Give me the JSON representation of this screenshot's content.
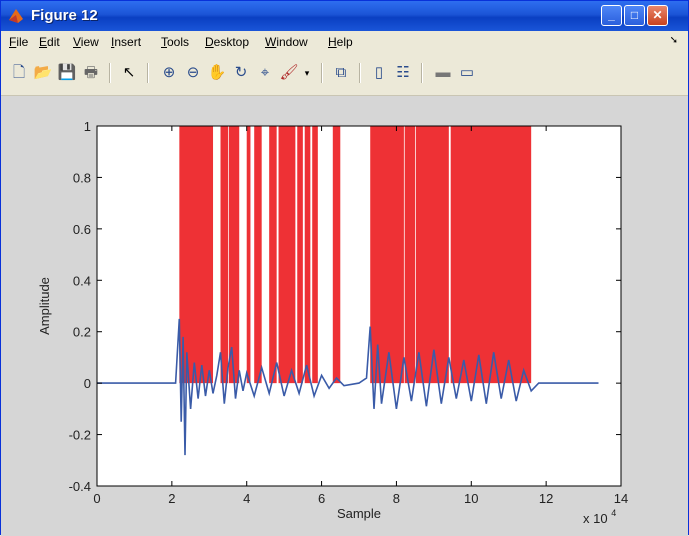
{
  "window": {
    "title": "Figure 12",
    "menu": [
      "File",
      "Edit",
      "View",
      "Insert",
      "Tools",
      "Desktop",
      "Window",
      "Help"
    ]
  },
  "toolbar": {
    "icons": [
      "new-figure-icon",
      "open-file-icon",
      "save-icon",
      "print-icon",
      "edit-plot-arrow-icon",
      "zoom-in-icon",
      "zoom-out-icon",
      "pan-hand-icon",
      "rotate-3d-icon",
      "data-cursor-icon",
      "brush-icon",
      "brush-dropdown-icon",
      "link-plot-icon",
      "colorbar-icon",
      "legend-icon",
      "hide-plot-tools-icon",
      "show-plot-tools-icon"
    ]
  },
  "colors": {
    "signal": "#3a5ba8",
    "mask": "#ee3135",
    "axes_bg": "#ffffff",
    "figure_bg": "#d6d6d6"
  },
  "chart_data": {
    "type": "line",
    "xlabel": "Sample",
    "ylabel": "Amplitude",
    "x_exponent": "x 10",
    "x_exponent_power": "4",
    "xlim": [
      0,
      140000
    ],
    "ylim": [
      -0.4,
      1
    ],
    "xticks": [
      0,
      2,
      4,
      6,
      8,
      10,
      12,
      14
    ],
    "yticks": [
      -0.4,
      -0.2,
      0,
      0.2,
      0.4,
      0.6,
      0.8,
      1
    ],
    "ytick_labels": [
      "-0.4",
      "-0.2",
      "0",
      "0.2",
      "0.4",
      "0.6",
      "0.8",
      "1"
    ],
    "series": [
      {
        "kind": "mask_bars",
        "value": 1,
        "segments": [
          [
            22000,
            31000
          ],
          [
            33000,
            35000
          ],
          [
            35200,
            38000
          ],
          [
            40000,
            41000
          ],
          [
            42000,
            44000
          ],
          [
            46000,
            48000
          ],
          [
            48500,
            53000
          ],
          [
            53500,
            55000
          ],
          [
            55500,
            57000
          ],
          [
            57500,
            59000
          ],
          [
            63000,
            65000
          ],
          [
            73000,
            82000
          ],
          [
            82200,
            85000
          ],
          [
            85200,
            94000
          ],
          [
            94500,
            116000
          ]
        ]
      },
      {
        "kind": "signal",
        "x": [
          0,
          10000,
          21000,
          22000,
          22500,
          23000,
          23500,
          24000,
          25000,
          26000,
          27000,
          28000,
          29000,
          30000,
          31000,
          32000,
          33000,
          34000,
          35000,
          36000,
          37000,
          38000,
          39000,
          40000,
          42000,
          44000,
          46000,
          48000,
          50000,
          52000,
          54000,
          56000,
          58000,
          60000,
          62000,
          64000,
          66000,
          70000,
          72000,
          73000,
          74000,
          75000,
          76000,
          78000,
          80000,
          82000,
          84000,
          86000,
          88000,
          90000,
          92000,
          94000,
          96000,
          98000,
          100000,
          102000,
          104000,
          106000,
          108000,
          110000,
          112000,
          114000,
          116000,
          118000,
          134000
        ],
        "y": [
          0,
          0,
          0,
          0.25,
          -0.15,
          0.18,
          -0.28,
          0.12,
          -0.1,
          0.08,
          -0.06,
          0.07,
          -0.05,
          0.05,
          -0.04,
          0.03,
          0.12,
          -0.08,
          0.06,
          0.14,
          -0.06,
          0.05,
          -0.03,
          0.04,
          -0.05,
          0.06,
          -0.04,
          0.08,
          -0.05,
          0.05,
          -0.04,
          0.07,
          -0.05,
          0.03,
          -0.02,
          0.02,
          -0.01,
          0,
          0.02,
          0.22,
          -0.1,
          0.15,
          -0.08,
          0.12,
          -0.1,
          0.1,
          -0.07,
          0.12,
          -0.09,
          0.13,
          -0.08,
          0.1,
          -0.06,
          0.09,
          -0.07,
          0.11,
          -0.08,
          0.12,
          -0.06,
          0.09,
          -0.07,
          0.05,
          -0.03,
          0,
          0
        ]
      }
    ]
  }
}
